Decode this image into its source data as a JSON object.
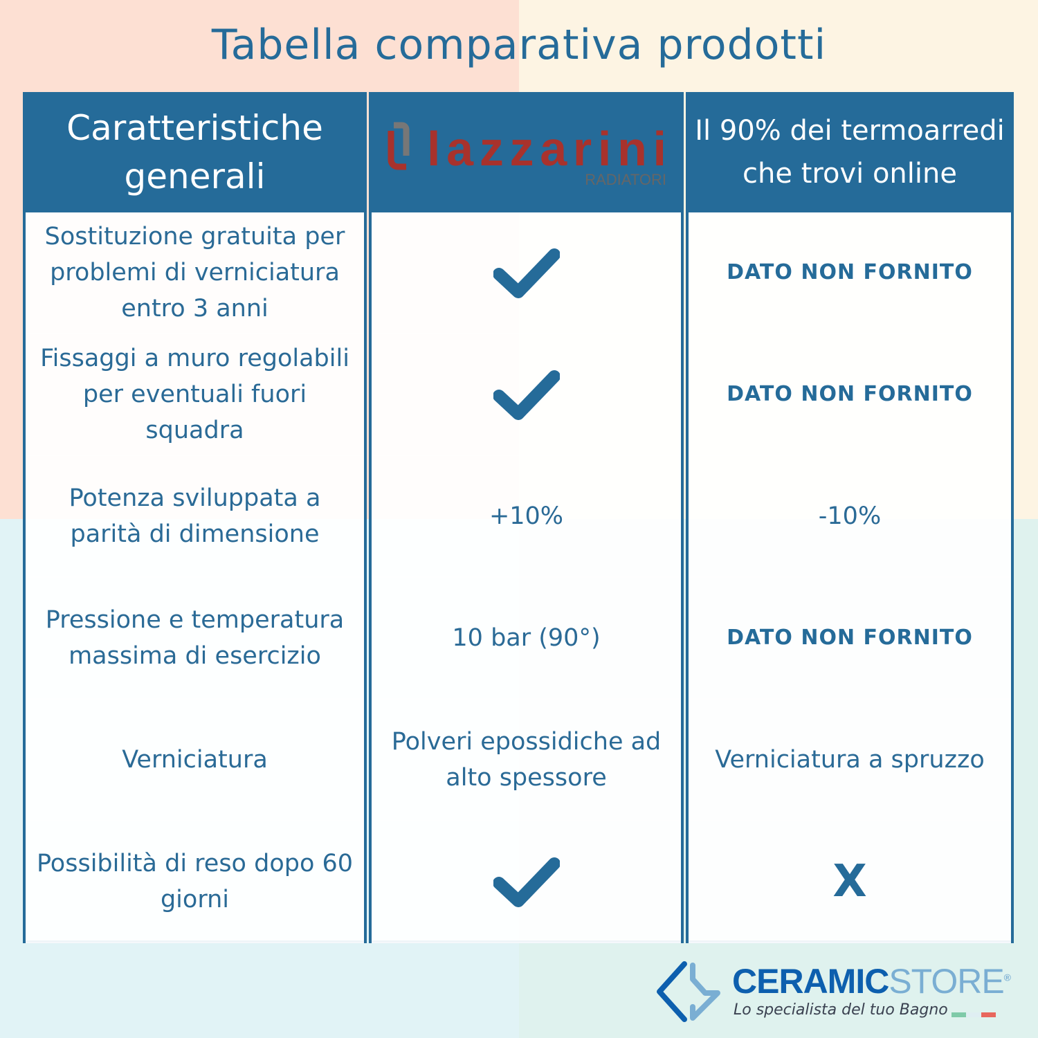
{
  "title": "Tabella comparativa prodotti",
  "colors": {
    "header": "#256b99",
    "text": "#2a6a96",
    "logo_red": "#a8322c",
    "bg_tl": "#fde0d3",
    "bg_tr": "#fdf4e3",
    "bg_bl": "#e1f3f6",
    "bg_br": "#dff2ee"
  },
  "header": {
    "col1": "Caratteristiche generali",
    "col2_logo": {
      "brand": "lazzarini",
      "sub": "RADIATORI"
    },
    "col3": "Il 90% dei termoarredi che trovi online"
  },
  "rows": [
    {
      "feature": "Sostituzione gratuita per problemi di verniciatura entro 3 anni",
      "lazzarini": "check-icon",
      "others": "DATO NON FORNITO"
    },
    {
      "feature": "Fissaggi a muro regolabili per eventuali fuori squadra",
      "lazzarini": "check-icon",
      "others": "DATO NON FORNITO"
    },
    {
      "feature": "Potenza sviluppata a parità di dimensione",
      "lazzarini": "+10%",
      "others": "-10%"
    },
    {
      "feature": "Pressione e temperatura massima di esercizio",
      "lazzarini": "10 bar (90°)",
      "others": "DATO NON FORNITO"
    },
    {
      "feature": "Verniciatura",
      "lazzarini": "Polveri epossidiche ad alto spessore",
      "others": "Verniciatura a spruzzo"
    },
    {
      "feature": "Possibilità di reso dopo 60 giorni",
      "lazzarini": "check-icon",
      "others": "X"
    }
  ],
  "footer_logo": {
    "brand_a": "CERAMIC",
    "brand_b": "STORE",
    "reg": "®",
    "tagline": "Lo specialista del tuo Bagno"
  }
}
